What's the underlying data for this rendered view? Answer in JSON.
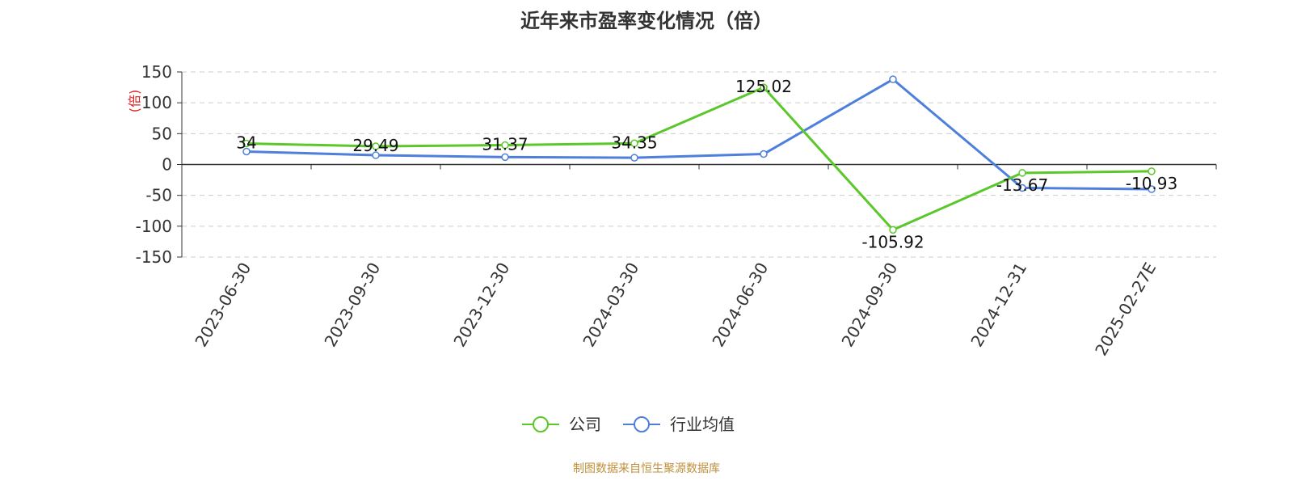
{
  "chart_data": {
    "type": "line",
    "title": "近年来市盈率变化情况（倍）",
    "ylabel": "(倍)",
    "xlabel": "",
    "categories": [
      "2023-06-30",
      "2023-09-30",
      "2023-12-30",
      "2024-03-30",
      "2024-06-30",
      "2024-09-30",
      "2024-12-31",
      "2025-02-27E"
    ],
    "ylim": [
      -150,
      150
    ],
    "yticks": [
      "150",
      "100",
      "50",
      "0",
      "-50",
      "-100",
      "-150"
    ],
    "grid": true,
    "legend_position": "bottom-center",
    "series": [
      {
        "name": "公司",
        "color": "#5cc72a",
        "values": [
          34,
          29.49,
          31.37,
          34.35,
          125.02,
          -105.92,
          -13.67,
          -10.93
        ],
        "labels": [
          "34",
          "29.49",
          "31.37",
          "34.35",
          "125.02",
          "-105.92",
          "-13.67",
          "-10.93"
        ]
      },
      {
        "name": "行业均值",
        "color": "#4e7fdc",
        "values": [
          21,
          15,
          12,
          11,
          17,
          138,
          -38,
          -40
        ]
      }
    ]
  },
  "source_note": "制图数据来自恒生聚源数据库"
}
